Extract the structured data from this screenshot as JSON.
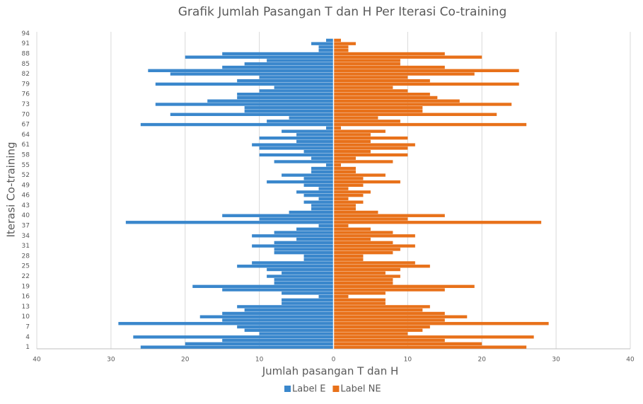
{
  "chart_data": {
    "type": "butterfly",
    "title": "Grafik Jumlah Pasangan T dan H Per Iterasi Co-training",
    "x_label": "Jumlah pasangan T dan H",
    "y_label": "Iterasi Co-training",
    "categories": [
      1,
      null,
      null,
      4,
      null,
      null,
      7,
      null,
      null,
      10,
      null,
      null,
      13,
      null,
      null,
      16,
      null,
      null,
      19,
      null,
      null,
      22,
      null,
      null,
      25,
      null,
      null,
      28,
      null,
      null,
      31,
      null,
      null,
      34,
      null,
      null,
      37,
      null,
      null,
      40,
      null,
      null,
      43,
      null,
      null,
      46,
      null,
      null,
      49,
      null,
      null,
      52,
      null,
      null,
      55,
      null,
      null,
      58,
      null,
      null,
      61,
      null,
      null,
      64,
      null,
      null,
      67,
      null,
      null,
      70,
      null,
      null,
      73,
      null,
      null,
      76,
      null,
      null,
      79,
      null,
      null,
      82,
      null,
      null,
      85,
      null,
      null,
      88,
      null,
      null,
      91,
      null,
      null,
      94
    ],
    "series": [
      {
        "name": "Label E",
        "color": "#3a87cc",
        "values": [
          -26,
          -20,
          -15,
          -27,
          -10,
          -12,
          -13,
          -29,
          -15,
          -18,
          -15,
          -12,
          -13,
          -7,
          -7,
          -2,
          -7,
          -15,
          -19,
          -8,
          -8,
          -9,
          -7,
          -9,
          -13,
          -11,
          -4,
          -4,
          -8,
          -8,
          -11,
          -8,
          -5,
          -11,
          -8,
          -5,
          -2,
          -28,
          -10,
          -15,
          -6,
          -3,
          -3,
          -4,
          -2,
          -4,
          -5,
          -2,
          -4,
          -9,
          -4,
          -7,
          -3,
          -3,
          -1,
          -8,
          -3,
          -10,
          -4,
          -10,
          -11,
          -5,
          -10,
          -5,
          -7,
          -1,
          -26,
          -9,
          -6,
          -22,
          -12,
          -12,
          -24,
          -17,
          -13,
          -13,
          -10,
          -8,
          -24,
          -13,
          -10,
          -22,
          -25,
          -15,
          -12,
          -9,
          -20,
          -15,
          -2,
          -2,
          -3,
          -1,
          0,
          0
        ]
      },
      {
        "name": "Label NE",
        "color": "#e8711a",
        "values": [
          26,
          20,
          15,
          27,
          10,
          12,
          13,
          29,
          15,
          18,
          15,
          12,
          13,
          7,
          7,
          2,
          7,
          15,
          19,
          8,
          8,
          9,
          7,
          9,
          13,
          11,
          4,
          4,
          8,
          9,
          11,
          8,
          5,
          11,
          8,
          5,
          2,
          28,
          10,
          15,
          6,
          3,
          3,
          4,
          2,
          4,
          5,
          2,
          4,
          9,
          4,
          7,
          3,
          3,
          1,
          8,
          3,
          10,
          5,
          10,
          11,
          5,
          10,
          5,
          7,
          1,
          26,
          9,
          6,
          22,
          12,
          12,
          24,
          17,
          14,
          13,
          10,
          8,
          25,
          13,
          10,
          19,
          25,
          15,
          9,
          9,
          20,
          15,
          2,
          2,
          3,
          1,
          0,
          0
        ]
      }
    ],
    "xlim": [
      -40,
      40
    ],
    "xticks": [
      {
        "value": -40,
        "label": "40"
      },
      {
        "value": -30,
        "label": "30"
      },
      {
        "value": -20,
        "label": "20"
      },
      {
        "value": -10,
        "label": "10"
      },
      0,
      10,
      20,
      30,
      40
    ],
    "grid": true,
    "legend": "bottom"
  }
}
